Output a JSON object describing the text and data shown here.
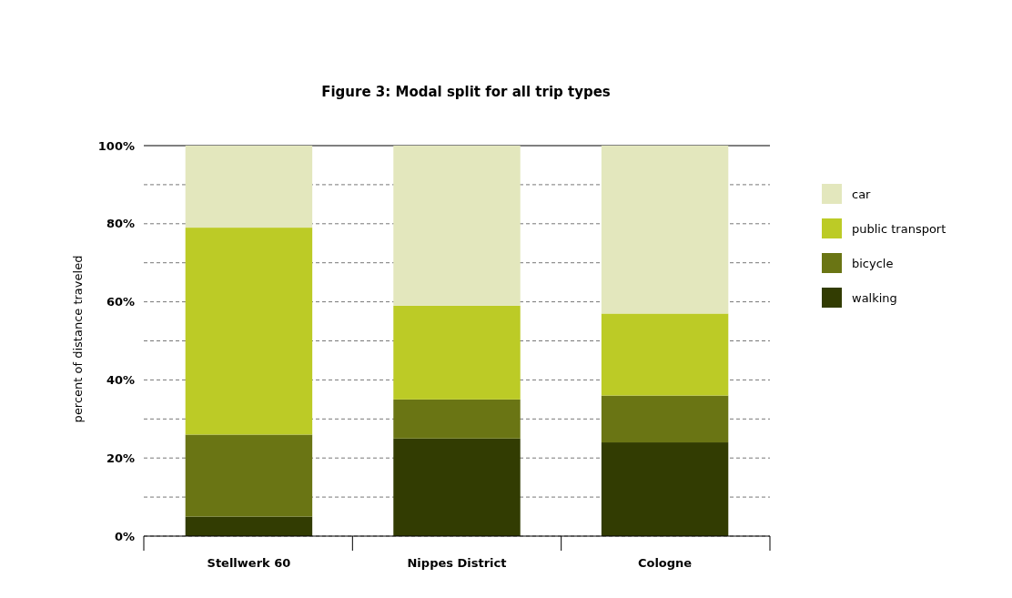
{
  "chart_data": {
    "type": "bar",
    "title": "Figure 3: Modal split for all trip types",
    "ylabel": "percent of  distance traveled",
    "categories": [
      "Stellwerk 60",
      "Nippes District",
      "Cologne"
    ],
    "stacked": true,
    "series": [
      {
        "name": "walking",
        "color": "#323c02",
        "values": [
          5,
          25,
          24
        ]
      },
      {
        "name": "bicycle",
        "color": "#6a7514",
        "values": [
          21,
          10,
          12
        ]
      },
      {
        "name": "public transport",
        "color": "#bccb26",
        "values": [
          53,
          24,
          21
        ]
      },
      {
        "name": "car",
        "color": "#e3e7bd",
        "values": [
          21,
          41,
          43
        ]
      }
    ],
    "ylim": [
      0,
      100
    ],
    "yticks": [
      {
        "value": 0,
        "label": "0%"
      },
      {
        "value": 10,
        "label": null
      },
      {
        "value": 20,
        "label": "20%"
      },
      {
        "value": 30,
        "label": null
      },
      {
        "value": 40,
        "label": "40%"
      },
      {
        "value": 50,
        "label": null
      },
      {
        "value": 60,
        "label": "60%"
      },
      {
        "value": 70,
        "label": null
      },
      {
        "value": 80,
        "label": "80%"
      },
      {
        "value": 90,
        "label": null
      },
      {
        "value": 100,
        "label": "100%"
      }
    ],
    "grid": "y",
    "legend": "right"
  }
}
